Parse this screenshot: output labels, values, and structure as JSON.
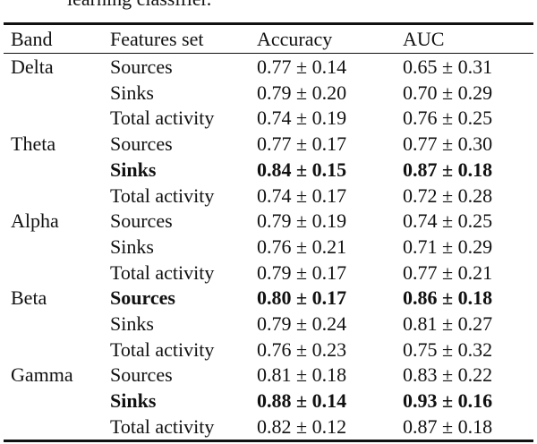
{
  "caption": "learning classifier.",
  "table": {
    "columns": [
      "Band",
      "Features set",
      "Accuracy",
      "AUC"
    ],
    "groups": [
      {
        "band": "Delta",
        "rows": [
          {
            "features": "Sources",
            "accuracy": "0.77 ± 0.14",
            "auc": "0.65 ± 0.31",
            "bold": false
          },
          {
            "features": "Sinks",
            "accuracy": "0.79 ± 0.20",
            "auc": "0.70 ± 0.29",
            "bold": false
          },
          {
            "features": "Total activity",
            "accuracy": "0.74 ± 0.19",
            "auc": "0.76 ± 0.25",
            "bold": false
          }
        ]
      },
      {
        "band": "Theta",
        "rows": [
          {
            "features": "Sources",
            "accuracy": "0.77 ± 0.17",
            "auc": "0.77 ± 0.30",
            "bold": false
          },
          {
            "features": "Sinks",
            "accuracy": "0.84 ± 0.15",
            "auc": "0.87 ± 0.18",
            "bold": true
          },
          {
            "features": "Total activity",
            "accuracy": "0.74 ± 0.17",
            "auc": "0.72 ± 0.28",
            "bold": false
          }
        ]
      },
      {
        "band": "Alpha",
        "rows": [
          {
            "features": "Sources",
            "accuracy": "0.79 ± 0.19",
            "auc": "0.74 ± 0.25",
            "bold": false
          },
          {
            "features": "Sinks",
            "accuracy": "0.76 ± 0.21",
            "auc": "0.71 ± 0.29",
            "bold": false
          },
          {
            "features": "Total activity",
            "accuracy": "0.79 ± 0.17",
            "auc": "0.77 ± 0.21",
            "bold": false
          }
        ]
      },
      {
        "band": "Beta",
        "rows": [
          {
            "features": "Sources",
            "accuracy": "0.80 ± 0.17",
            "auc": "0.86 ± 0.18",
            "bold": true
          },
          {
            "features": "Sinks",
            "accuracy": "0.79 ± 0.24",
            "auc": "0.81 ± 0.27",
            "bold": false
          },
          {
            "features": "Total activity",
            "accuracy": "0.76 ± 0.23",
            "auc": "0.75 ± 0.32",
            "bold": false
          }
        ]
      },
      {
        "band": "Gamma",
        "rows": [
          {
            "features": "Sources",
            "accuracy": "0.81 ± 0.18",
            "auc": "0.83 ± 0.22",
            "bold": false
          },
          {
            "features": "Sinks",
            "accuracy": "0.88 ± 0.14",
            "auc": "0.93 ± 0.16",
            "bold": true
          },
          {
            "features": "Total activity",
            "accuracy": "0.82 ± 0.12",
            "auc": "0.87 ± 0.18",
            "bold": false
          }
        ]
      }
    ]
  }
}
